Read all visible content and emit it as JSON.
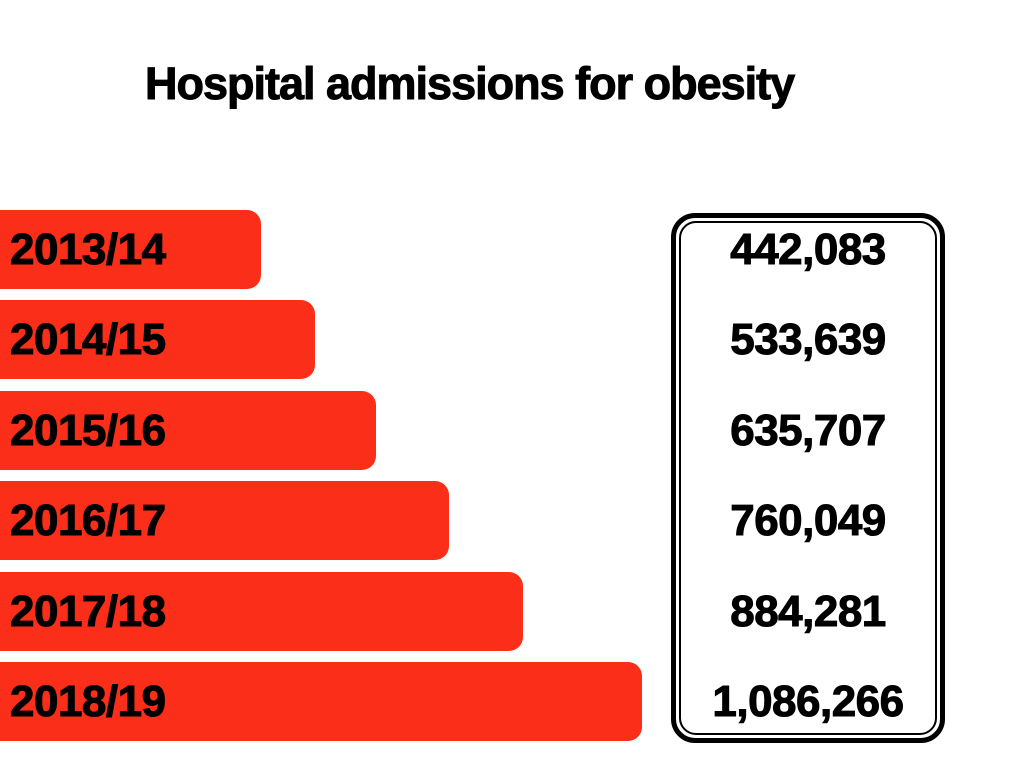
{
  "title": "Hospital admissions for obesity",
  "colors": {
    "bar": "#fb2e19",
    "text": "#000000",
    "background": "#ffffff",
    "panel_border": "#000000"
  },
  "chart_data": {
    "type": "bar",
    "orientation": "horizontal",
    "title": "Hospital admissions for obesity",
    "categories": [
      "2013/14",
      "2014/15",
      "2015/16",
      "2016/17",
      "2017/18",
      "2018/19"
    ],
    "values": [
      442083,
      533639,
      635707,
      760049,
      884281,
      1086266
    ],
    "value_labels": [
      "442,083",
      "533,639",
      "635,707",
      "760,049",
      "884,281",
      "1,086,266"
    ],
    "xlabel": "",
    "ylabel": "",
    "xlim": [
      0,
      1086266
    ],
    "grid": false,
    "legend_position": "none",
    "bar_color": "#fb2e19",
    "value_panel": "double-bordered rounded rectangle on right listing values aligned with bars"
  }
}
